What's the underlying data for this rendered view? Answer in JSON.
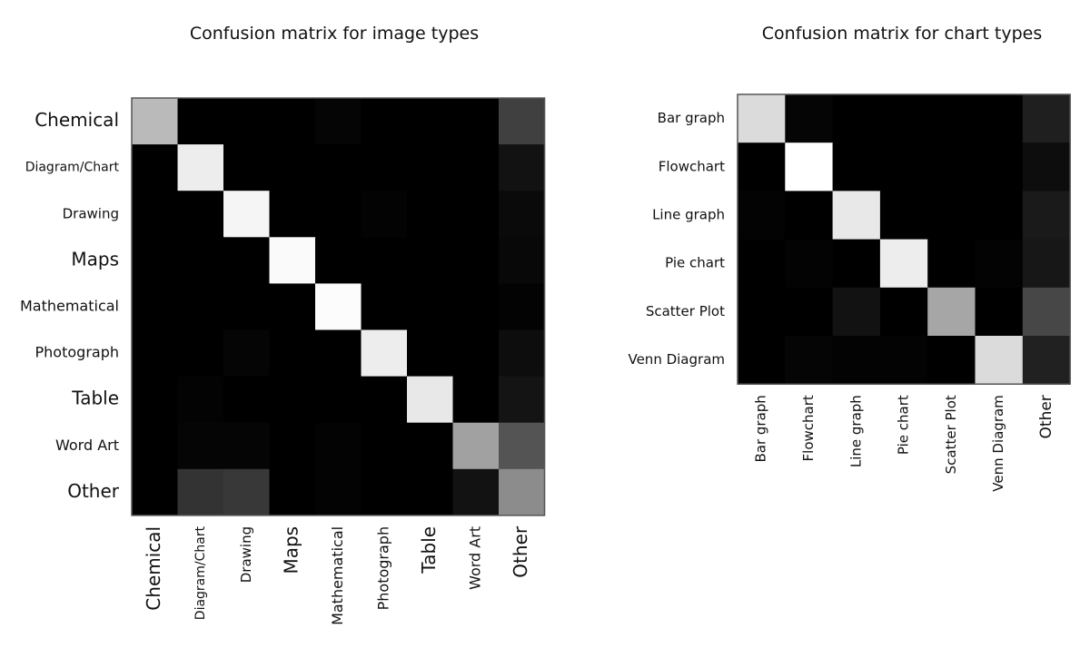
{
  "chart_data": [
    {
      "type": "heatmap",
      "title": "Confusion matrix for image types",
      "rows": [
        "Chemical",
        "Diagram/Chart",
        "Drawing",
        "Maps",
        "Mathematical",
        "Photograph",
        "Table",
        "Word Art",
        "Other"
      ],
      "columns": [
        "Chemical",
        "Diagram/Chart",
        "Drawing",
        "Maps",
        "Mathematical",
        "Photograph",
        "Table",
        "Word Art",
        "Other"
      ],
      "value_range": [
        0,
        1
      ],
      "colormap": "grayscale (black = 0, white = 1)",
      "values": [
        [
          0.73,
          0.0,
          0.0,
          0.0,
          0.02,
          0.0,
          0.0,
          0.0,
          0.25
        ],
        [
          0.0,
          0.93,
          0.0,
          0.0,
          0.0,
          0.0,
          0.0,
          0.0,
          0.07
        ],
        [
          0.0,
          0.0,
          0.96,
          0.0,
          0.0,
          0.01,
          0.0,
          0.0,
          0.04
        ],
        [
          0.0,
          0.0,
          0.0,
          0.98,
          0.0,
          0.0,
          0.0,
          0.0,
          0.03
        ],
        [
          0.0,
          0.0,
          0.0,
          0.0,
          0.99,
          0.0,
          0.0,
          0.0,
          0.01
        ],
        [
          0.0,
          0.0,
          0.02,
          0.0,
          0.0,
          0.93,
          0.0,
          0.0,
          0.05
        ],
        [
          0.0,
          0.01,
          0.0,
          0.0,
          0.0,
          0.0,
          0.91,
          0.0,
          0.08
        ],
        [
          0.0,
          0.02,
          0.02,
          0.0,
          0.01,
          0.0,
          0.0,
          0.63,
          0.33
        ],
        [
          0.0,
          0.2,
          0.22,
          0.0,
          0.01,
          0.0,
          0.0,
          0.07,
          0.55
        ]
      ]
    },
    {
      "type": "heatmap",
      "title": "Confusion matrix for chart types",
      "rows": [
        "Bar graph",
        "Flowchart",
        "Line graph",
        "Pie chart",
        "Scatter Plot",
        "Venn Diagram"
      ],
      "columns": [
        "Bar graph",
        "Flowchart",
        "Line graph",
        "Pie chart",
        "Scatter Plot",
        "Venn Diagram",
        "Other"
      ],
      "value_range": [
        0,
        1
      ],
      "colormap": "grayscale (black = 0, white = 1)",
      "values": [
        [
          0.86,
          0.02,
          0.0,
          0.0,
          0.0,
          0.0,
          0.12
        ],
        [
          0.0,
          1.0,
          0.0,
          0.0,
          0.0,
          0.0,
          0.05
        ],
        [
          0.01,
          0.0,
          0.91,
          0.0,
          0.0,
          0.0,
          0.1
        ],
        [
          0.0,
          0.01,
          0.0,
          0.93,
          0.0,
          0.01,
          0.09
        ],
        [
          0.0,
          0.0,
          0.07,
          0.0,
          0.65,
          0.0,
          0.28
        ],
        [
          0.0,
          0.02,
          0.01,
          0.01,
          0.0,
          0.86,
          0.13
        ]
      ]
    }
  ]
}
